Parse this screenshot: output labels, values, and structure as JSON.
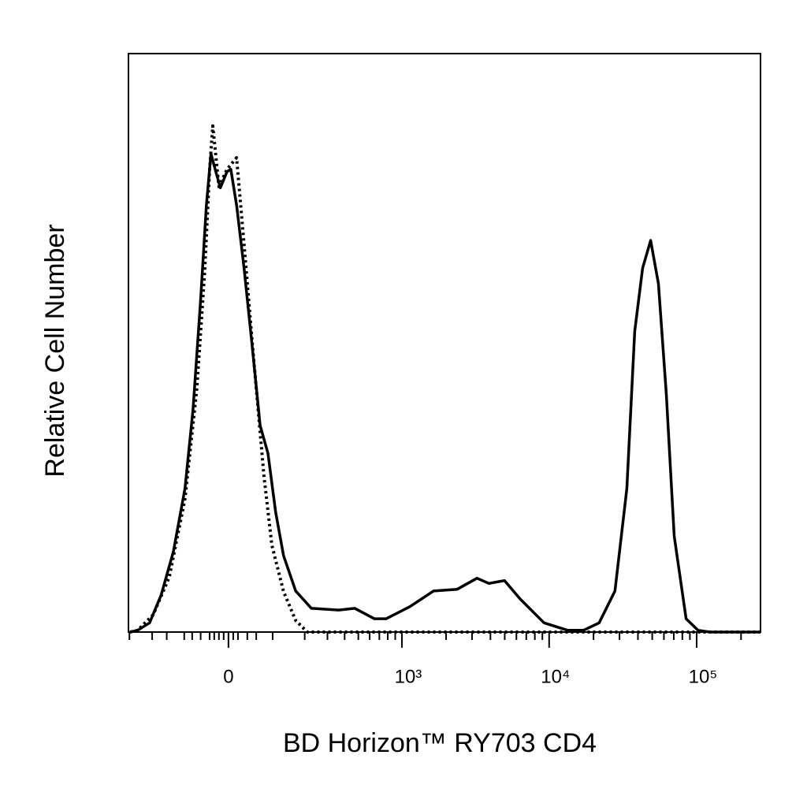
{
  "chart_data": {
    "type": "line",
    "x_label": "BD Horizon™ RY703 CD4",
    "y_label": "Relative Cell Number",
    "x_scale": "biexponential",
    "xlim": [
      -305,
      271000
    ],
    "ylim": [
      0,
      100
    ],
    "xticks": [
      0,
      {
        "value": 1000,
        "label": "10³"
      },
      {
        "value": 10000,
        "label": "10⁴"
      },
      {
        "value": 100000,
        "label": "10⁵"
      }
    ],
    "xminorticks": [
      -300,
      -200,
      -150,
      -100,
      -80,
      -60,
      -40,
      -30,
      -20,
      -10,
      10,
      20,
      40,
      60,
      100,
      200,
      300,
      400,
      500,
      600,
      700,
      800,
      900,
      2000,
      3000,
      4000,
      5000,
      6000,
      7000,
      8000,
      9000,
      20000,
      30000,
      40000,
      50000,
      60000,
      70000,
      80000,
      90000,
      200000
    ],
    "series": [
      {
        "color": "#000000",
        "linestyle": "solid",
        "x": [
          -297,
          -260,
          -210,
          -168,
          -130,
          -98,
          -78,
          -60,
          -47,
          -37,
          -28,
          -17,
          -3,
          5,
          17,
          33,
          51,
          69,
          88,
          108,
          130,
          168,
          226,
          363,
          472,
          646,
          781,
          1135,
          1644,
          2380,
          3243,
          3900,
          4985,
          6378,
          9233,
          13373,
          17098,
          21842,
          27952,
          33634,
          38056,
          43014,
          48776,
          55074,
          62310,
          70484,
          84822,
          102108,
          122744,
          271000
        ],
        "values": [
          0,
          0.3,
          1.6,
          6.4,
          13.9,
          24.8,
          38.4,
          57.5,
          73.8,
          82.7,
          80,
          76.8,
          79.6,
          80,
          73.8,
          62.9,
          49.3,
          35.7,
          30.9,
          20.7,
          13.2,
          7.1,
          4.1,
          3.8,
          4.1,
          2.3,
          2.3,
          4.4,
          7.1,
          7.4,
          9.3,
          8.4,
          8.9,
          5.7,
          1.6,
          0.3,
          0.3,
          1.6,
          7.1,
          24.8,
          52,
          62.9,
          67.7,
          60.2,
          41.1,
          16.6,
          2.3,
          0.3,
          0,
          0
        ]
      },
      {
        "color": "#000000",
        "linestyle": "dotted",
        "x": [
          -297,
          -260,
          -196,
          -142,
          -98,
          -69,
          -51,
          -40,
          -33,
          -20,
          -3,
          17,
          33,
          51,
          78,
          98,
          130,
          168,
          210,
          271000
        ],
        "values": [
          0,
          0.3,
          3,
          9.5,
          23,
          42,
          62,
          80,
          87.5,
          77,
          80,
          82,
          67,
          50,
          27,
          15,
          7,
          2,
          0,
          0
        ]
      }
    ]
  }
}
